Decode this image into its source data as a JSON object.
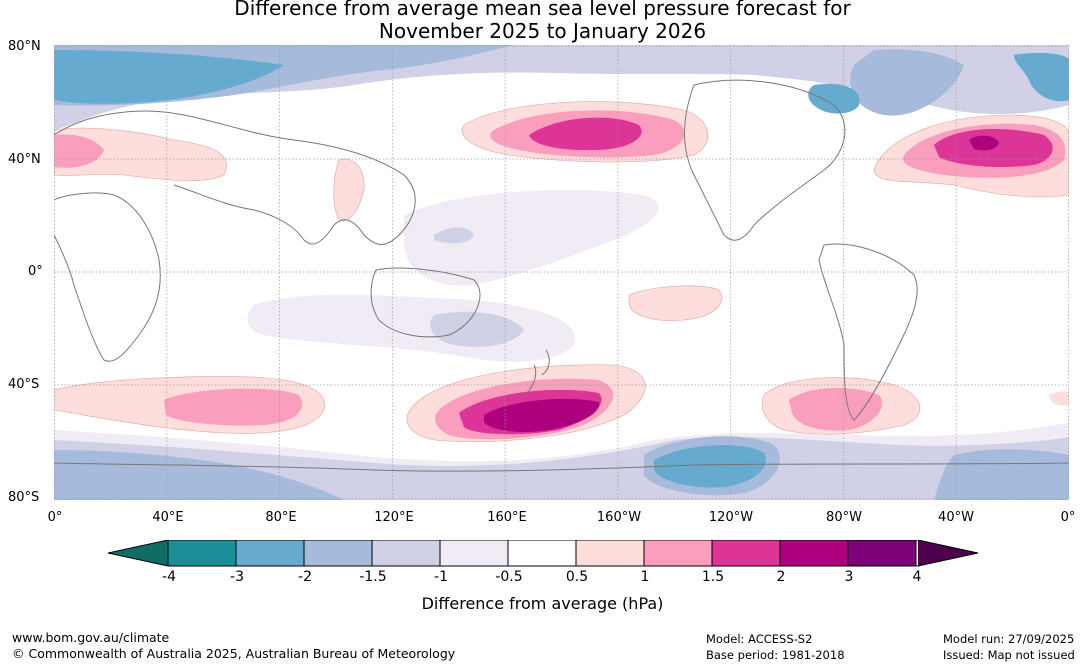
{
  "title": {
    "line1": "Difference from average mean sea level pressure forecast for",
    "line2": "November 2025 to January 2026"
  },
  "map": {
    "lat_labels": [
      "80°N",
      "40°N",
      "0°",
      "40°S",
      "80°S"
    ],
    "lon_labels": [
      "0°",
      "40°E",
      "80°E",
      "120°E",
      "160°E",
      "160°W",
      "120°W",
      "80°W",
      "40°W",
      "0°"
    ]
  },
  "colorbar": {
    "title": "Difference from average (hPa)",
    "ticks": [
      "-4",
      "-3",
      "-2",
      "-1.5",
      "-1",
      "-0.5",
      "0.5",
      "1",
      "1.5",
      "2",
      "3",
      "4"
    ],
    "colors": [
      "#1a8f97",
      "#67aad0",
      "#a6badb",
      "#d0d1e6",
      "#f0ebf4",
      "#ffffff",
      "#fddedc",
      "#f99fbd",
      "#dd3498",
      "#ae017e",
      "#7a0177"
    ],
    "under_color": "#0e6e66",
    "over_color": "#4d004b"
  },
  "footer": {
    "url": "www.bom.gov.au/climate",
    "copyright": "© Commonwealth of Australia 2025, Australian Bureau of Meteorology",
    "model": "Model: ACCESS-S2",
    "base_period": "Base period: 1981-2018",
    "model_run": "Model run: 27/09/2025",
    "issued": "Issued: Map not issued"
  }
}
